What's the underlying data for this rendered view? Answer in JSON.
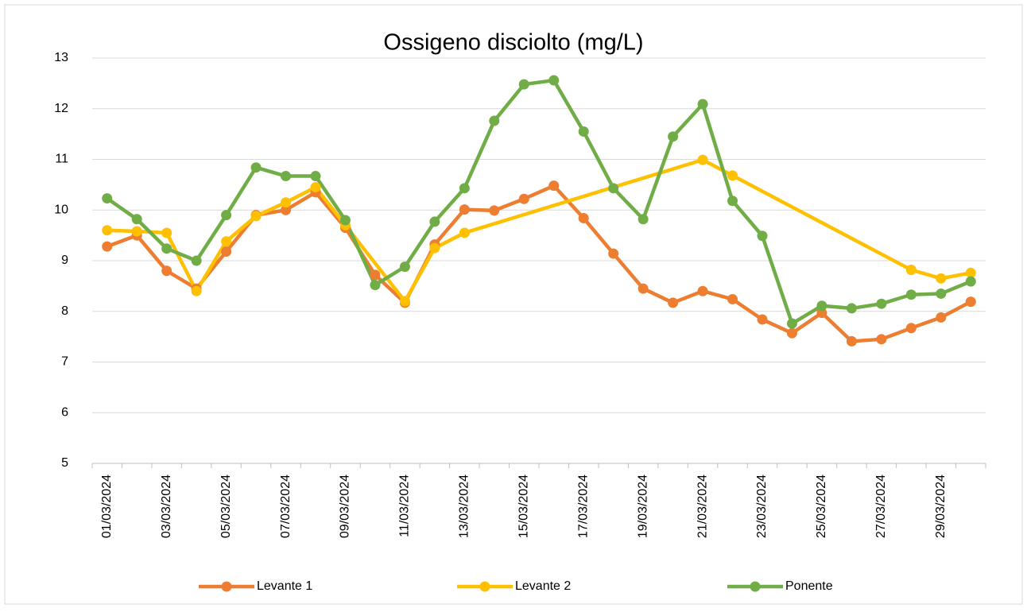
{
  "chart_data": {
    "type": "line",
    "title": "Ossigeno disciolto (mg/L)",
    "categories": [
      "01/03/2024",
      null,
      "03/03/2024",
      null,
      "05/03/2024",
      null,
      "07/03/2024",
      null,
      "09/03/2024",
      null,
      "11/03/2024",
      null,
      "13/03/2024",
      null,
      "15/03/2024",
      null,
      "17/03/2024",
      null,
      "19/03/2024",
      null,
      "21/03/2024",
      null,
      "23/03/2024",
      null,
      "25/03/2024",
      null,
      "27/03/2024",
      null,
      "29/03/2024",
      null
    ],
    "series": [
      {
        "name": "Levante 1",
        "color": "#ed7d31",
        "values": [
          9.28,
          9.5,
          8.8,
          8.45,
          9.18,
          9.9,
          10.0,
          10.35,
          9.65,
          8.72,
          8.17,
          9.32,
          10.01,
          9.99,
          10.22,
          10.48,
          9.84,
          9.14,
          8.45,
          8.17,
          8.4,
          8.24,
          7.84,
          7.57,
          7.97,
          7.41,
          7.45,
          7.67,
          7.88,
          8.19
        ]
      },
      {
        "name": "Levante 2",
        "color": "#ffc000",
        "values": [
          9.6,
          9.58,
          9.55,
          8.4,
          9.38,
          9.88,
          10.15,
          10.45,
          9.7,
          null,
          8.2,
          9.25,
          9.55,
          null,
          null,
          null,
          null,
          null,
          null,
          null,
          10.99,
          10.68,
          null,
          null,
          null,
          null,
          null,
          8.82,
          8.65,
          8.76
        ]
      },
      {
        "name": "Ponente",
        "color": "#70ad47",
        "values": [
          10.23,
          9.82,
          9.24,
          9.0,
          9.9,
          10.84,
          10.67,
          10.67,
          9.8,
          8.52,
          8.88,
          9.77,
          10.43,
          11.76,
          12.48,
          12.56,
          11.55,
          10.43,
          9.82,
          11.45,
          12.09,
          10.18,
          9.49,
          7.76,
          8.11,
          8.06,
          8.15,
          8.33,
          8.35,
          8.59
        ]
      }
    ],
    "ylim": [
      5,
      13
    ],
    "yticks": [
      5,
      6,
      7,
      8,
      9,
      10,
      11,
      12,
      13
    ],
    "grid": true,
    "legend": "bottom",
    "connect_gaps": true
  }
}
